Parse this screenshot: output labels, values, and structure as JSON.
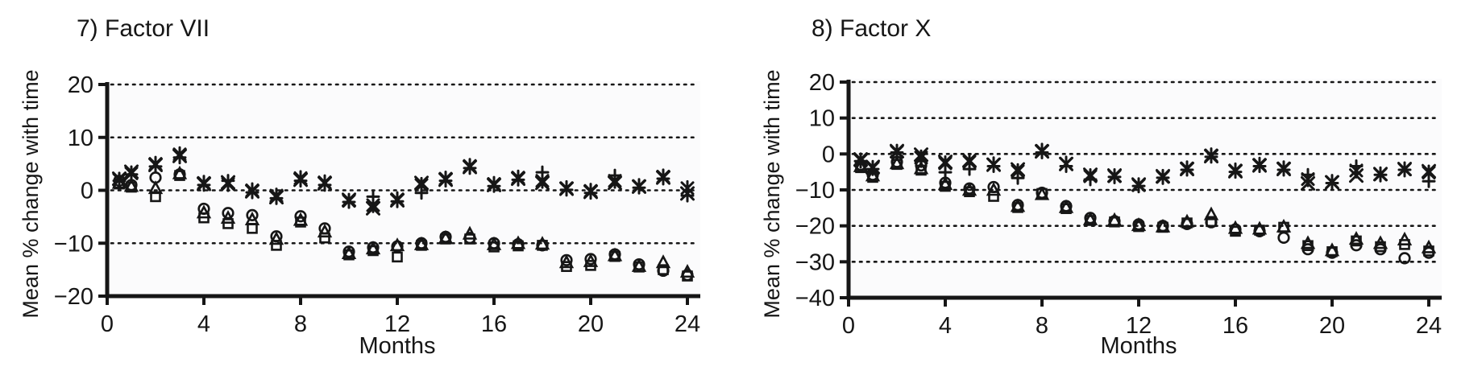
{
  "style": {
    "ink": "#161616",
    "plot_bg": "#fbfbfc",
    "background": "#ffffff"
  },
  "chart_data": [
    {
      "type": "scatter",
      "title": "7) Factor VII",
      "xlabel": "Months",
      "ylabel": "Mean % change with time",
      "xlim": [
        0,
        24
      ],
      "ylim": [
        -20,
        20
      ],
      "xticks": [
        0,
        4,
        8,
        12,
        16,
        20,
        24
      ],
      "yticks": [
        20,
        10,
        0,
        -10,
        -20
      ],
      "grid": "horizontal-dotted",
      "legend": "none",
      "x": [
        0.5,
        1,
        2,
        3,
        4,
        5,
        6,
        7,
        8,
        9,
        10,
        11,
        12,
        13,
        14,
        15,
        16,
        17,
        18,
        19,
        20,
        21,
        22,
        23,
        24
      ],
      "series": [
        {
          "name": "cross",
          "marker": "x",
          "values": [
            2.2,
            3.5,
            4.8,
            6.5,
            1.2,
            1.5,
            -0.2,
            -1.3,
            2.0,
            1.3,
            -1.8,
            -3.4,
            -1.9,
            1.4,
            2.0,
            4.4,
            1.0,
            2.2,
            1.4,
            0.3,
            -0.3,
            1.4,
            0.7,
            2.4,
            -0.6
          ]
        },
        {
          "name": "plus",
          "marker": "plus",
          "values": [
            1.8,
            3.0,
            4.5,
            6.2,
            1.0,
            1.8,
            -0.4,
            -1.5,
            1.8,
            1.0,
            -2.2,
            -1.2,
            -2.1,
            -0.5,
            1.8,
            4.2,
            0.8,
            2.0,
            3.4,
            0.1,
            -0.5,
            2.8,
            0.5,
            2.2,
            -1.0
          ]
        },
        {
          "name": "asterisk",
          "marker": "asterisk",
          "values": [
            2.0,
            3.2,
            5.0,
            6.8,
            1.4,
            1.2,
            0.0,
            -1.0,
            2.3,
            1.5,
            -2.0,
            -2.8,
            -1.7,
            1.0,
            2.2,
            4.6,
            1.2,
            2.4,
            1.8,
            0.4,
            -0.1,
            1.8,
            0.8,
            2.6,
            0.4
          ]
        },
        {
          "name": "circle",
          "marker": "circle",
          "values": [
            1.8,
            1.0,
            2.4,
            3.0,
            -3.5,
            -4.3,
            -4.7,
            -8.7,
            -4.9,
            -7.2,
            -11.6,
            -10.8,
            -10.6,
            -10.0,
            -8.8,
            -9.0,
            -10.0,
            -10.2,
            -10.4,
            -13.2,
            -13.0,
            -12.1,
            -14.0,
            -15.2,
            -16.0
          ]
        },
        {
          "name": "triangle",
          "marker": "triangle",
          "values": [
            1.4,
            0.8,
            0.4,
            3.2,
            -4.2,
            -5.2,
            -5.5,
            -9.2,
            -5.6,
            -7.8,
            -11.9,
            -11.0,
            -10.4,
            -10.2,
            -9.0,
            -8.2,
            -10.2,
            -10.0,
            -10.1,
            -13.6,
            -13.4,
            -12.3,
            -14.3,
            -13.6,
            -15.4
          ]
        },
        {
          "name": "square",
          "marker": "square",
          "values": [
            1.2,
            0.6,
            -1.2,
            2.8,
            -5.2,
            -6.3,
            -7.2,
            -10.4,
            -6.0,
            -9.0,
            -12.2,
            -11.4,
            -12.6,
            -10.4,
            -9.2,
            -9.2,
            -10.7,
            -10.5,
            -10.4,
            -14.4,
            -14.2,
            -12.5,
            -14.5,
            -15.0,
            -16.2
          ]
        }
      ]
    },
    {
      "type": "scatter",
      "title": "8) Factor X",
      "xlabel": "Months",
      "ylabel": "Mean % change with time",
      "xlim": [
        0,
        24
      ],
      "ylim": [
        -40,
        20
      ],
      "xticks": [
        0,
        4,
        8,
        12,
        16,
        20,
        24
      ],
      "yticks": [
        20,
        10,
        0,
        -10,
        -20,
        -30,
        -40
      ],
      "grid": "horizontal-dotted",
      "legend": "none",
      "x": [
        0.5,
        1,
        2,
        3,
        4,
        5,
        6,
        7,
        8,
        9,
        10,
        11,
        12,
        13,
        14,
        15,
        16,
        17,
        18,
        19,
        20,
        21,
        22,
        23,
        24
      ],
      "series": [
        {
          "name": "cross",
          "marker": "x",
          "values": [
            -1.5,
            -3.6,
            0.8,
            -0.2,
            -2.2,
            -1.8,
            -3.0,
            -4.3,
            0.7,
            -2.8,
            -5.8,
            -6.0,
            -8.5,
            -6.2,
            -4.2,
            -0.6,
            -4.8,
            -3.2,
            -4.2,
            -8.2,
            -7.9,
            -6.0,
            -5.6,
            -4.2,
            -4.8
          ]
        },
        {
          "name": "plus",
          "marker": "plus",
          "values": [
            -2.0,
            -4.2,
            0.4,
            -2.0,
            -5.1,
            -4.2,
            -3.4,
            -6.7,
            0.4,
            -3.4,
            -7.1,
            -6.4,
            -8.9,
            -6.6,
            -4.4,
            -0.8,
            -5.0,
            -3.4,
            -4.4,
            -5.8,
            -8.1,
            -3.4,
            -5.8,
            -4.4,
            -7.6
          ]
        },
        {
          "name": "asterisk",
          "marker": "asterisk",
          "values": [
            -1.8,
            -3.9,
            0.6,
            -1.0,
            -2.6,
            -2.2,
            -2.9,
            -4.8,
            0.9,
            -2.7,
            -6.2,
            -6.2,
            -8.7,
            -6.4,
            -4.0,
            -0.4,
            -4.6,
            -3.0,
            -4.0,
            -7.0,
            -7.8,
            -4.6,
            -5.7,
            -4.3,
            -5.2
          ]
        },
        {
          "name": "circle",
          "marker": "circle",
          "values": [
            -3.0,
            -5.8,
            -2.2,
            -3.2,
            -8.0,
            -9.6,
            -9.2,
            -14.2,
            -10.8,
            -14.5,
            -17.8,
            -18.7,
            -19.6,
            -20.0,
            -19.5,
            -19.0,
            -21.0,
            -21.5,
            -23.3,
            -26.5,
            -27.5,
            -25.4,
            -26.5,
            -29.0,
            -27.5
          ]
        },
        {
          "name": "triangle",
          "marker": "triangle",
          "values": [
            -3.4,
            -6.0,
            -2.6,
            -4.0,
            -8.4,
            -10.0,
            -10.0,
            -14.5,
            -11.2,
            -14.8,
            -18.2,
            -18.4,
            -19.8,
            -20.2,
            -18.8,
            -16.8,
            -20.6,
            -20.8,
            -20.2,
            -24.8,
            -26.8,
            -23.6,
            -24.8,
            -23.8,
            -26.0
          ]
        },
        {
          "name": "square",
          "marker": "square",
          "values": [
            -3.8,
            -6.5,
            -2.9,
            -4.5,
            -9.0,
            -10.5,
            -11.8,
            -14.9,
            -11.0,
            -15.2,
            -18.5,
            -18.9,
            -20.2,
            -20.4,
            -19.2,
            -18.8,
            -21.5,
            -21.2,
            -20.4,
            -25.5,
            -27.2,
            -24.2,
            -25.8,
            -25.2,
            -27.0
          ]
        }
      ]
    }
  ]
}
